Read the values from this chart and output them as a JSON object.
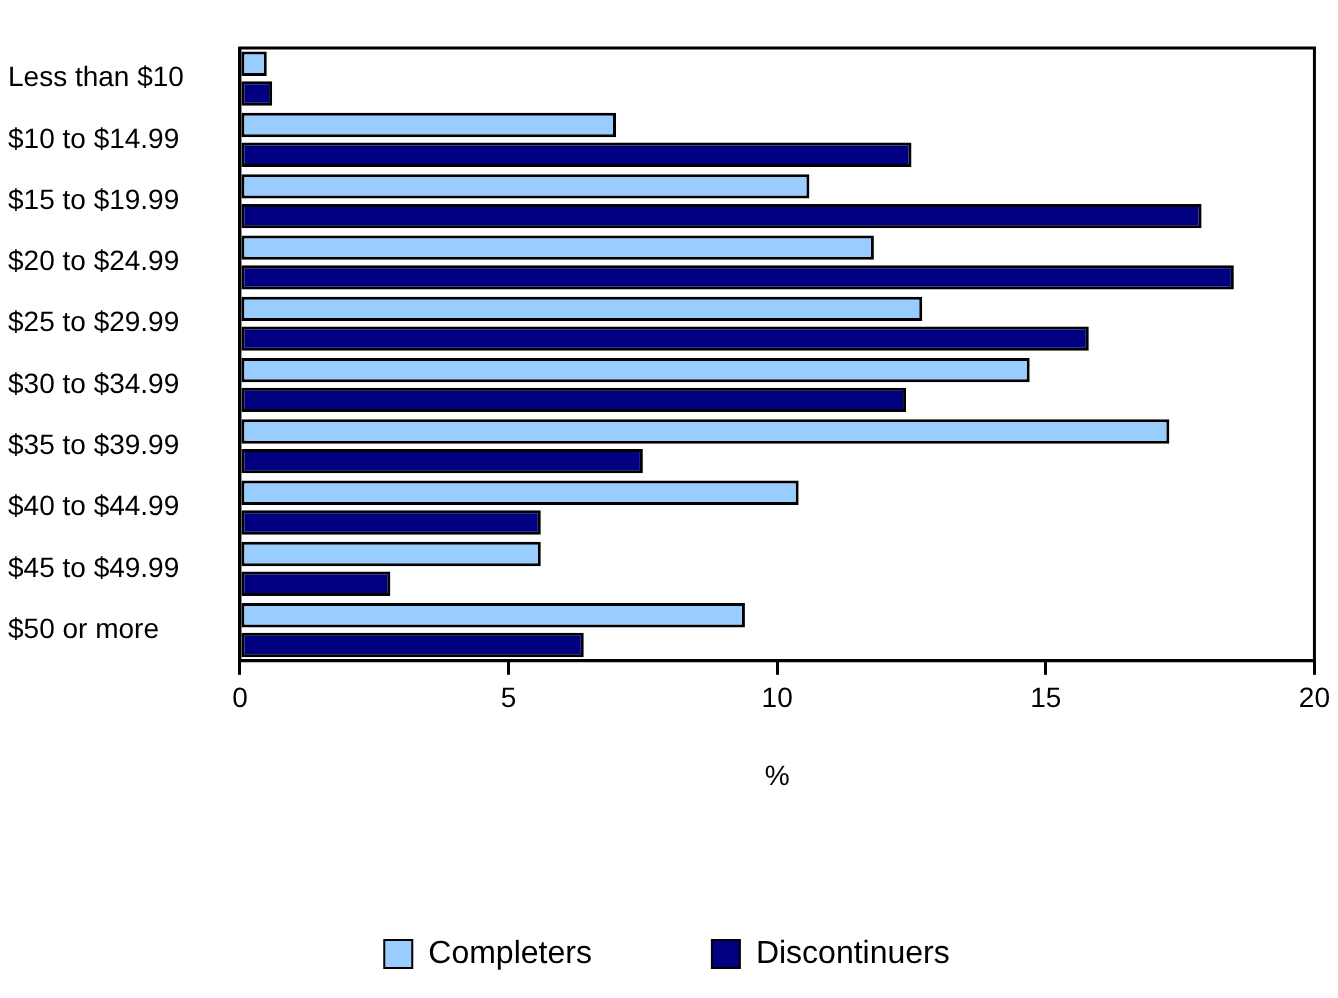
{
  "chart_data": {
    "type": "bar",
    "orientation": "horizontal",
    "xlabel": "%",
    "categories": [
      "Less than $10",
      "$10 to $14.99",
      "$15 to $19.99",
      "$20 to $24.99",
      "$25 to $29.99",
      "$30 to $34.99",
      "$35 to $39.99",
      "$40 to $44.99",
      "$45 to $49.99",
      "$50 or more"
    ],
    "series": [
      {
        "name": "Completers",
        "color": "#99ccff",
        "values": [
          0.5,
          7.0,
          10.6,
          11.8,
          12.7,
          14.7,
          17.3,
          10.4,
          5.6,
          9.4
        ]
      },
      {
        "name": "Discontinuers",
        "color": "#000080",
        "values": [
          0.6,
          12.5,
          17.9,
          18.5,
          15.8,
          12.4,
          7.5,
          5.6,
          2.8,
          6.4
        ]
      }
    ],
    "xlim": [
      0,
      20
    ],
    "xticks": [
      0,
      5,
      10,
      15,
      20
    ],
    "grid": false,
    "legend": "bottom"
  }
}
